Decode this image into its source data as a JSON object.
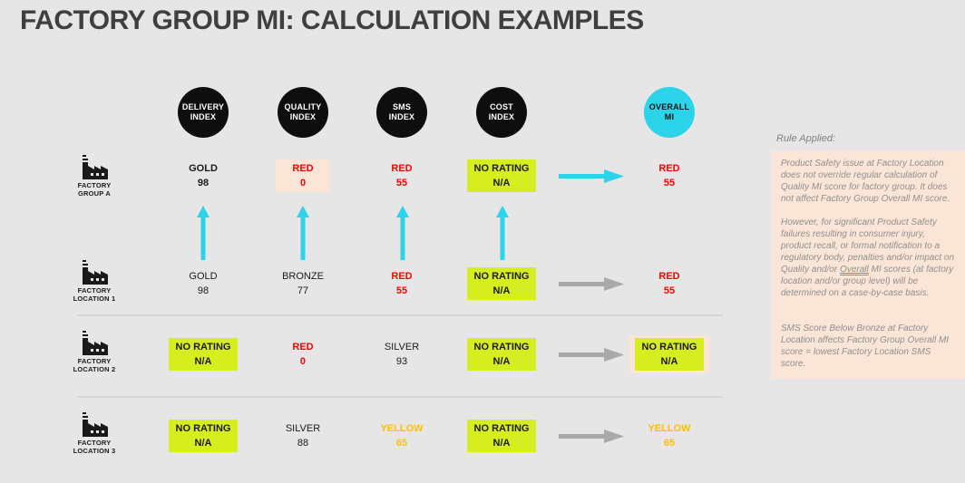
{
  "title": "FACTORY GROUP MI: CALCULATION EXAMPLES",
  "colors": {
    "background": "#e6e6e6",
    "title_text": "#3f3f3f",
    "header_circle": "#0e0e0e",
    "header_circle_text": "#ffffff",
    "overall_circle": "#2bd4e9",
    "up_arrow": "#2bd4e9",
    "gray_arrow": "#a9a9a9",
    "no_rating_highlight": "#d6ee20",
    "attention_highlight": "#fbe5d6",
    "red_text": "#ff0000",
    "yellow_text": "#ffc000"
  },
  "columns": [
    {
      "label": "DELIVERY\nINDEX"
    },
    {
      "label": "QUALITY\nINDEX"
    },
    {
      "label": "SMS\nINDEX"
    },
    {
      "label": "COST\nINDEX"
    },
    {
      "label": "OVERALL\nMI"
    }
  ],
  "rows": [
    {
      "label": "FACTORY\nGROUP A",
      "arrow_color": "#2bd4e9",
      "cells": [
        {
          "rating": "GOLD",
          "score": "98",
          "color": "#1a1a1a",
          "bold": true,
          "bg": null,
          "outer": null
        },
        {
          "rating": "RED",
          "score": "0",
          "color": "#ff0000",
          "bold": true,
          "bg": "#fbe5d6",
          "outer": null
        },
        {
          "rating": "RED",
          "score": "55",
          "color": "#ff0000",
          "bold": true,
          "bg": null,
          "outer": null
        },
        {
          "rating": "NO RATING",
          "score": "N/A",
          "color": "#1a1a1a",
          "bold": true,
          "bg": "#d6ee20",
          "outer": null
        },
        {
          "rating": "RED",
          "score": "55",
          "color": "#ff0000",
          "bold": true,
          "bg": null,
          "outer": null
        }
      ]
    },
    {
      "label": "FACTORY\nLOCATION 1",
      "arrow_color": "#a9a9a9",
      "cells": [
        {
          "rating": "GOLD",
          "score": "98",
          "color": "#1a1a1a",
          "bold": false,
          "bg": null,
          "outer": null
        },
        {
          "rating": "BRONZE",
          "score": "77",
          "color": "#1a1a1a",
          "bold": false,
          "bg": null,
          "outer": null
        },
        {
          "rating": "RED",
          "score": "55",
          "color": "#ff0000",
          "bold": true,
          "bg": null,
          "outer": null
        },
        {
          "rating": "NO RATING",
          "score": "N/A",
          "color": "#1a1a1a",
          "bold": true,
          "bg": "#d6ee20",
          "outer": null
        },
        {
          "rating": "RED",
          "score": "55",
          "color": "#ff0000",
          "bold": true,
          "bg": null,
          "outer": null
        }
      ]
    },
    {
      "label": "FACTORY\nLOCATION 2",
      "arrow_color": "#a9a9a9",
      "cells": [
        {
          "rating": "NO RATING",
          "score": "N/A",
          "color": "#1a1a1a",
          "bold": true,
          "bg": "#d6ee20",
          "outer": null
        },
        {
          "rating": "RED",
          "score": "0",
          "color": "#ff0000",
          "bold": true,
          "bg": null,
          "outer": null
        },
        {
          "rating": "SILVER",
          "score": "93",
          "color": "#1a1a1a",
          "bold": false,
          "bg": null,
          "outer": null
        },
        {
          "rating": "NO RATING",
          "score": "N/A",
          "color": "#1a1a1a",
          "bold": true,
          "bg": "#d6ee20",
          "outer": null
        },
        {
          "rating": "NO RATING",
          "score": "N/A",
          "color": "#1a1a1a",
          "bold": true,
          "bg": "#d6ee20",
          "outer": "#fbe5d6"
        }
      ]
    },
    {
      "label": "FACTORY\nLOCATION 3",
      "arrow_color": "#a9a9a9",
      "cells": [
        {
          "rating": "NO RATING",
          "score": "N/A",
          "color": "#1a1a1a",
          "bold": true,
          "bg": "#d6ee20",
          "outer": null
        },
        {
          "rating": "SILVER",
          "score": "88",
          "color": "#1a1a1a",
          "bold": false,
          "bg": null,
          "outer": null
        },
        {
          "rating": "YELLOW",
          "score": "65",
          "color": "#ffc000",
          "bold": true,
          "bg": null,
          "outer": null
        },
        {
          "rating": "NO RATING",
          "score": "N/A",
          "color": "#1a1a1a",
          "bold": true,
          "bg": "#d6ee20",
          "outer": null
        },
        {
          "rating": "YELLOW",
          "score": "65",
          "color": "#ffc000",
          "bold": true,
          "bg": null,
          "outer": null
        }
      ]
    }
  ],
  "side_panel": {
    "heading": "Rule Applied:",
    "p1": "Product Safety issue at Factory Location does not override regular calculation of Quality MI score for factory group. It does not affect Factory Group Overall MI score.",
    "p2_before": "However, for significant Product Safety failures resulting in consumer injury, product recall, or formal notification to a regulatory body, penalties and/or impact on Quality and/or ",
    "p2_underlined": "Overall",
    "p2_after": " MI scores (at factory location and/or group level) will be determined on a case-by-case basis.",
    "p3": "SMS Score Below Bronze at Factory Location affects Factory Group Overall MI score = lowest Factory Location SMS score."
  }
}
